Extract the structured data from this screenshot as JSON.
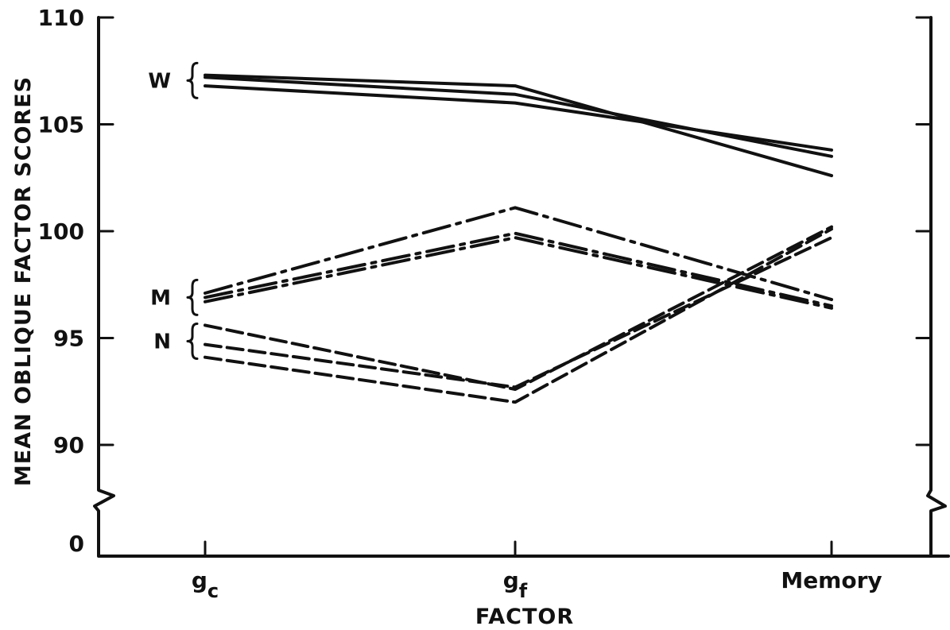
{
  "chart_data": {
    "type": "line",
    "xlabel": "FACTOR",
    "ylabel": "MEAN OBLIQUE FACTOR SCORES",
    "categories": [
      {
        "main": "g",
        "sub": "c"
      },
      {
        "main": "g",
        "sub": "f"
      },
      {
        "main": "Memory",
        "sub": ""
      }
    ],
    "y_ticks": [
      110,
      105,
      100,
      95,
      90
    ],
    "y_floor_tick": 0,
    "y_axis_break": true,
    "ylim": [
      88,
      110
    ],
    "grid": false,
    "groups": [
      {
        "label": "W",
        "style": "solid",
        "series": [
          {
            "values": [
              107.3,
              106.8,
              102.6
            ]
          },
          {
            "values": [
              107.2,
              106.4,
              103.5
            ]
          },
          {
            "values": [
              106.8,
              106.0,
              103.8
            ]
          }
        ]
      },
      {
        "label": "M",
        "style": "dashdot",
        "series": [
          {
            "values": [
              97.1,
              101.1,
              96.8
            ]
          },
          {
            "values": [
              96.9,
              99.9,
              96.5
            ]
          },
          {
            "values": [
              96.7,
              99.7,
              96.4
            ]
          }
        ]
      },
      {
        "label": "N",
        "style": "dashed",
        "series": [
          {
            "values": [
              95.6,
              92.6,
              100.2
            ]
          },
          {
            "values": [
              94.7,
              92.7,
              99.7
            ]
          },
          {
            "values": [
              94.1,
              92.0,
              100.1
            ]
          }
        ]
      }
    ]
  }
}
